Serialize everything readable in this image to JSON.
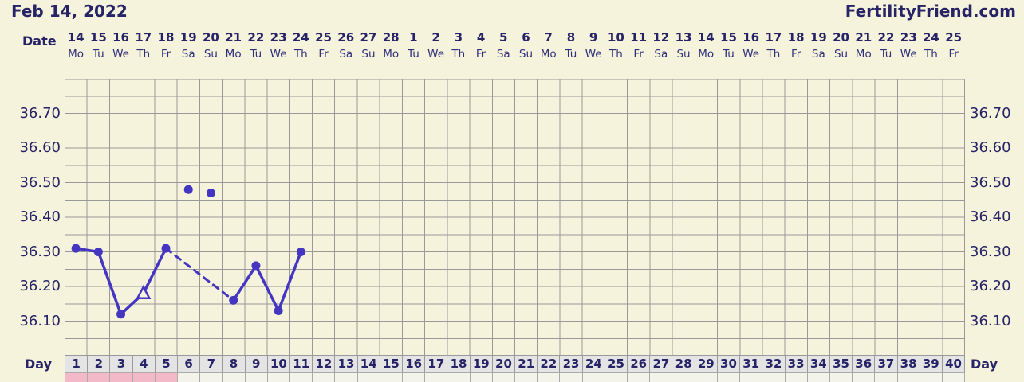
{
  "header": {
    "date_title": "Feb 14, 2022",
    "site_name": "FertilityFriend.com"
  },
  "labels": {
    "date_label": "Date",
    "day_label": "Day"
  },
  "colors": {
    "background": "#f6f3dc",
    "grid": "#999999",
    "line": "#4436c0",
    "text_navy": "#262366",
    "day_cell_bg": "#e4e4e4",
    "menses_pink": "#f3b9c8"
  },
  "chart_data": {
    "type": "line",
    "title": "Feb 14, 2022",
    "x_axis": {
      "label": "Date",
      "dates": [
        14,
        15,
        16,
        17,
        18,
        19,
        20,
        21,
        22,
        23,
        24,
        25,
        26,
        27,
        28,
        1,
        2,
        3,
        4,
        5,
        6,
        7,
        8,
        9,
        10,
        11,
        12,
        13,
        14,
        15,
        16,
        17,
        18,
        19,
        20,
        21,
        22,
        23,
        24,
        25
      ],
      "weekdays": [
        "Mo",
        "Tu",
        "We",
        "Th",
        "Fr",
        "Sa",
        "Su",
        "Mo",
        "Tu",
        "We",
        "Th",
        "Fr",
        "Sa",
        "Su",
        "Mo",
        "Tu",
        "We",
        "Th",
        "Fr",
        "Sa",
        "Su",
        "Mo",
        "Tu",
        "We",
        "Th",
        "Fr",
        "Sa",
        "Su",
        "Mo",
        "Tu",
        "We",
        "Th",
        "Fr",
        "Sa",
        "Su",
        "Mo",
        "Tu",
        "We",
        "Th",
        "Fr"
      ]
    },
    "y_axis": {
      "unit": "celsius",
      "ticks": [
        "36.70",
        "36.60",
        "36.50",
        "36.40",
        "36.30",
        "36.20",
        "36.10"
      ],
      "max": 36.8,
      "min": 36.0,
      "minor_step": 0.05,
      "grid": true
    },
    "cycle_days": [
      1,
      2,
      3,
      4,
      5,
      6,
      7,
      8,
      9,
      10,
      11,
      12,
      13,
      14,
      15,
      16,
      17,
      18,
      19,
      20,
      21,
      22,
      23,
      24,
      25,
      26,
      27,
      28,
      29,
      30,
      31,
      32,
      33,
      34,
      35,
      36,
      37,
      38,
      39,
      40
    ],
    "points": [
      {
        "day": 1,
        "temp": 36.31,
        "marker": "dot"
      },
      {
        "day": 2,
        "temp": 36.3,
        "marker": "dot"
      },
      {
        "day": 3,
        "temp": 36.12,
        "marker": "dot"
      },
      {
        "day": 4,
        "temp": 36.18,
        "marker": "open-triangle"
      },
      {
        "day": 5,
        "temp": 36.31,
        "marker": "dot"
      },
      {
        "day": 6,
        "temp": 36.48,
        "marker": "dot",
        "discarded": true
      },
      {
        "day": 7,
        "temp": 36.47,
        "marker": "dot",
        "discarded": true
      },
      {
        "day": 8,
        "temp": 36.16,
        "marker": "dot"
      },
      {
        "day": 9,
        "temp": 36.26,
        "marker": "dot"
      },
      {
        "day": 10,
        "temp": 36.13,
        "marker": "dot"
      },
      {
        "day": 11,
        "temp": 36.3,
        "marker": "dot"
      }
    ],
    "line_segments": [
      {
        "style": "solid",
        "days": [
          1,
          2,
          3,
          4,
          5
        ]
      },
      {
        "style": "dashed",
        "days": [
          5,
          8
        ]
      },
      {
        "style": "solid",
        "days": [
          8,
          9,
          10,
          11
        ]
      }
    ],
    "menses_days": [
      1,
      2,
      3,
      4,
      5
    ]
  }
}
